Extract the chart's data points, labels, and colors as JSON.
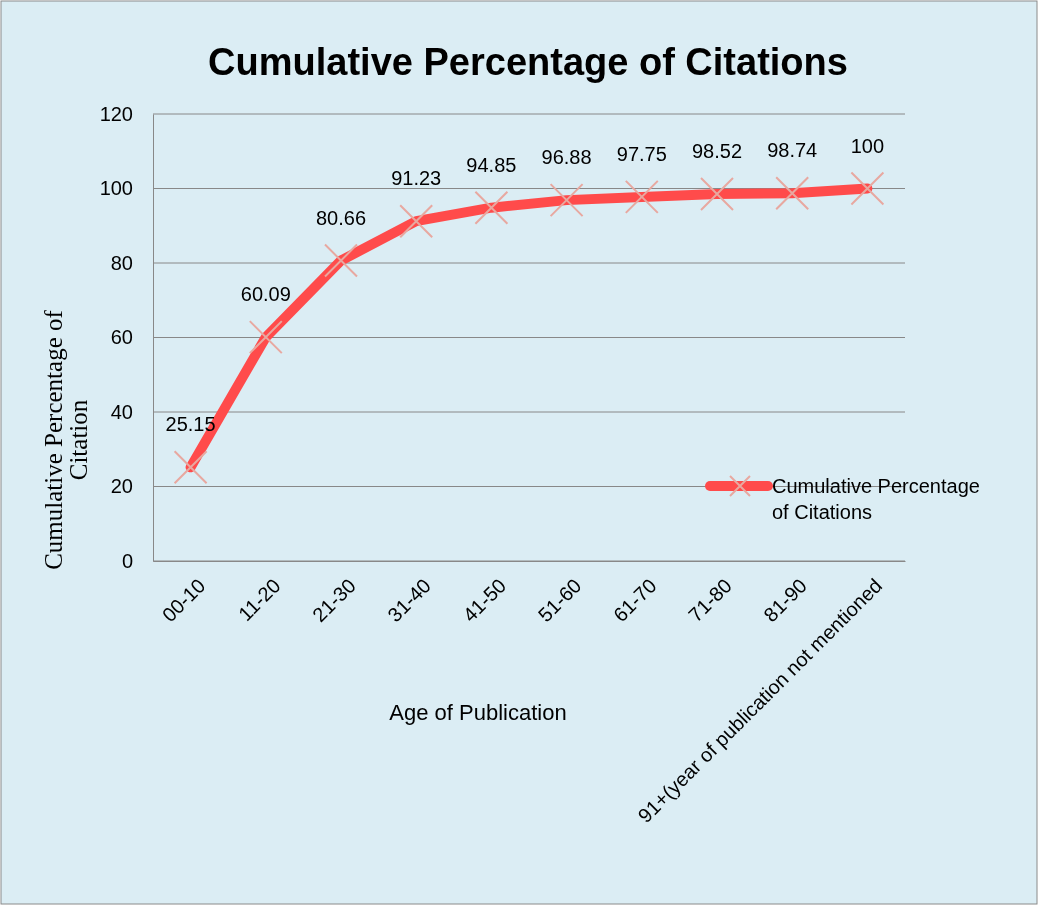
{
  "chart_data": {
    "type": "line",
    "title": "Cumulative Percentage of Citations",
    "xlabel": "Age of Publication",
    "ylabel": "Cumulative  Percentage of Citation",
    "categories": [
      "00-10",
      "11-20",
      "21-30",
      "31-40",
      "41-50",
      "51-60",
      "61-70",
      "71-80",
      "81-90",
      "91+(year of publication not mentioned"
    ],
    "series": [
      {
        "name": "Cumulative Percentage of Citations",
        "color": "#ff4b4b",
        "values": [
          25.15,
          60.09,
          80.66,
          91.23,
          94.85,
          96.88,
          97.75,
          98.52,
          98.74,
          100
        ]
      }
    ],
    "ylim": [
      0,
      120
    ],
    "yticks": [
      0,
      20,
      40,
      60,
      80,
      100,
      120
    ],
    "grid": "y",
    "legend": "right",
    "marker": "cross",
    "line_style": "solid",
    "data_labels": true
  }
}
